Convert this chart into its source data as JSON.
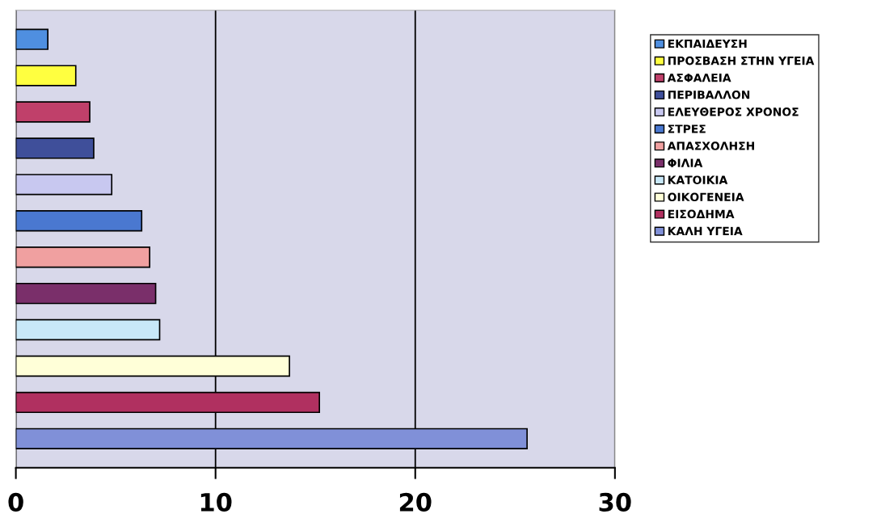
{
  "chart_data": {
    "type": "bar",
    "orientation": "horizontal",
    "categories": [
      null
    ],
    "series": [
      {
        "name": "ΕΚΠΑΙΔΕΥΣΗ",
        "color": "#4f8fe0",
        "values": [
          1.6
        ]
      },
      {
        "name": "ΠΡΟΣΒΑΣΗ ΣΤΗΝ ΥΓΕΙΑ",
        "color": "#ffff40",
        "values": [
          3.0
        ]
      },
      {
        "name": "ΑΣΦΑΛΕΙΑ",
        "color": "#c0406a",
        "values": [
          3.7
        ]
      },
      {
        "name": "ΠΕΡΙΒΑΛΛΟΝ",
        "color": "#3f4f9a",
        "values": [
          3.9
        ]
      },
      {
        "name": "ΕΛΕΥΘΕΡΟΣ ΧΡΟΝΟΣ",
        "color": "#c8c8f0",
        "values": [
          4.8
        ]
      },
      {
        "name": "ΣΤΡΕΣ",
        "color": "#4a78d0",
        "values": [
          6.3
        ]
      },
      {
        "name": "ΑΠΑΣΧΟΛΗΣΗ",
        "color": "#f0a0a0",
        "values": [
          6.7
        ]
      },
      {
        "name": "ΦΙΛΙΑ",
        "color": "#7a2f6a",
        "values": [
          7.0
        ]
      },
      {
        "name": "ΚΑΤΟΙΚΙΑ",
        "color": "#c8e8f8",
        "values": [
          7.2
        ]
      },
      {
        "name": "ΟΙΚΟΓΕΝΕΙΑ",
        "color": "#ffffd8",
        "values": [
          13.7
        ]
      },
      {
        "name": "ΕΙΣΟΔΗΜΑ",
        "color": "#b03060",
        "values": [
          15.2
        ]
      },
      {
        "name": "ΚΑΛΗ ΥΓΕΙΑ",
        "color": "#8090d8",
        "values": [
          25.6
        ]
      }
    ],
    "xlim": [
      0,
      30
    ],
    "xticks": [
      0,
      10,
      20,
      30
    ],
    "grid": "x",
    "legend": "right"
  }
}
